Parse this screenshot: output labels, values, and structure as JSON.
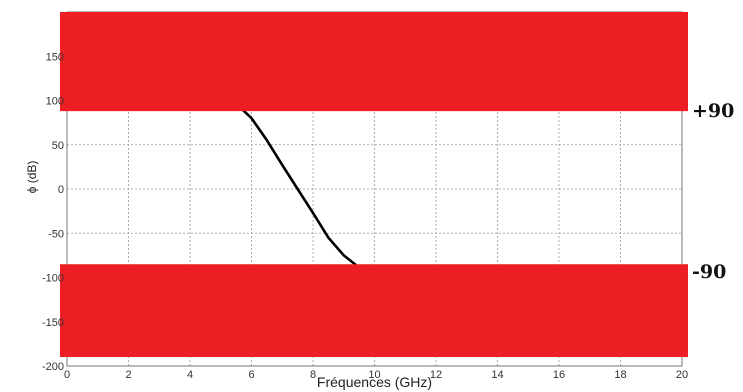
{
  "chart_data": {
    "type": "line",
    "title": "",
    "xlabel": "Fréquences (GHz)",
    "ylabel": "ϕ (dB)",
    "xlim": [
      0,
      20
    ],
    "ylim": [
      -200,
      200
    ],
    "x_ticks": [
      0,
      2,
      4,
      6,
      8,
      10,
      12,
      14,
      16,
      18,
      20
    ],
    "y_ticks": [
      -200,
      -150,
      -100,
      -50,
      0,
      50,
      100,
      150
    ],
    "grid": true,
    "series": [
      {
        "color": "#000000",
        "x": [
          5.7,
          6.0,
          6.5,
          7.0,
          7.5,
          8.0,
          8.5,
          9.0,
          9.4
        ],
        "y": [
          90,
          80,
          55,
          27,
          0,
          -27,
          -55,
          -75,
          -86
        ]
      }
    ],
    "bands": [
      {
        "y_from": 88,
        "y_to": 200,
        "color": "#ee1f24",
        "label": "+90"
      },
      {
        "y_from": -200,
        "y_to": -85,
        "color": "#ee1f24",
        "label": "-90"
      }
    ]
  }
}
